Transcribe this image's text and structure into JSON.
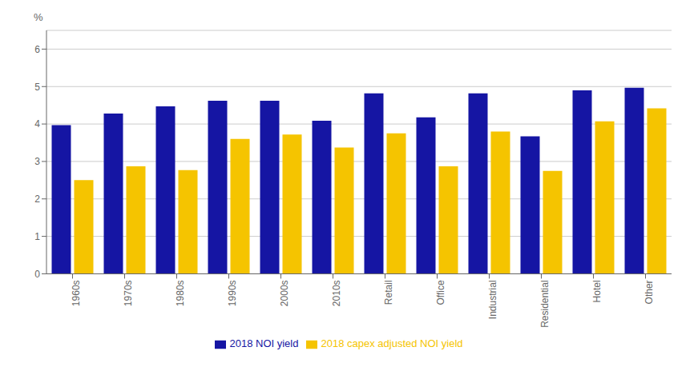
{
  "chart_data": {
    "type": "bar",
    "ylabel": "%",
    "categories": [
      "1960s",
      "1970s",
      "1980s",
      "1990s",
      "2000s",
      "2010s",
      "Retail",
      "Office",
      "Industrial",
      "Residential",
      "Hotel",
      "Other"
    ],
    "series": [
      {
        "name": "2018 NOI yield",
        "color": "#1515a3",
        "values": [
          3.97,
          4.28,
          4.47,
          4.62,
          4.62,
          4.09,
          4.82,
          4.18,
          4.82,
          3.67,
          4.9,
          4.97
        ]
      },
      {
        "name": "2018 capex adjusted NOI yield",
        "color": "#f5c400",
        "values": [
          2.5,
          2.87,
          2.77,
          3.6,
          3.72,
          3.37,
          3.75,
          2.87,
          3.8,
          2.75,
          4.07,
          4.42
        ]
      }
    ],
    "ylim": [
      0,
      6.5
    ],
    "yticks": [
      0,
      1,
      2,
      3,
      4,
      5,
      6
    ],
    "grid": true,
    "legend": "bottom"
  }
}
